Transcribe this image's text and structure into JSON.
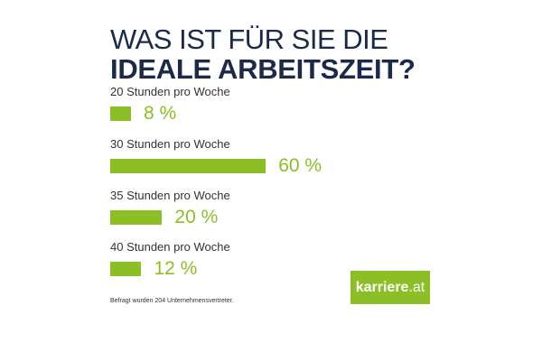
{
  "chart_data": {
    "type": "bar",
    "orientation": "horizontal",
    "title_line1": "WAS IST FÜR SIE DIE",
    "title_line2": "IDEALE ARBEITSZEIT?",
    "categories": [
      "20 Stunden pro Woche",
      "30 Stunden pro Woche",
      "35 Stunden pro Woche",
      "40 Stunden pro Woche"
    ],
    "values": [
      8,
      60,
      20,
      12
    ],
    "value_labels": [
      "8 %",
      "60 %",
      "20 %",
      "12 %"
    ],
    "unit": "%",
    "xlim": [
      0,
      100
    ],
    "grid": false,
    "color": "#8cbf26"
  },
  "footnote": "Befragt wurden 204 Unternehmensvertreter.",
  "logo": {
    "main": "karriere",
    "suffix": ".at"
  }
}
